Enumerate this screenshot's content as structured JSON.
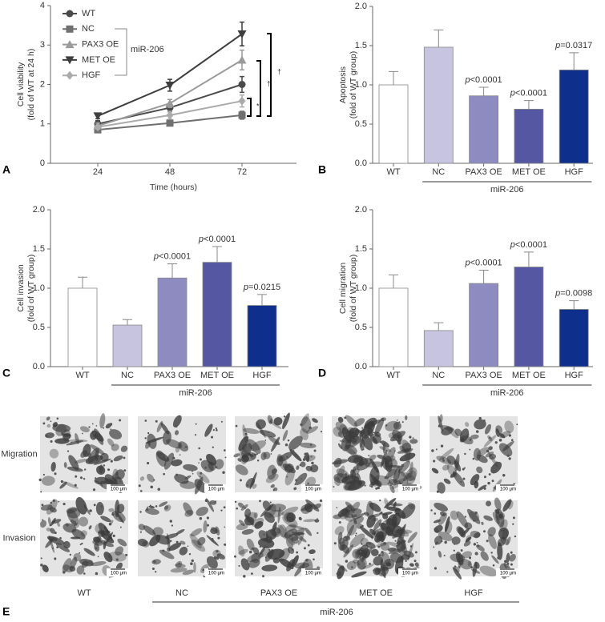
{
  "chart_data": [
    {
      "type": "line",
      "panel_label": "A",
      "xlabel": "Time (hours)",
      "ylabel": [
        "Cell viability",
        "(fold of WT at 24 h)"
      ],
      "categories": [
        "24",
        "48",
        "72"
      ],
      "ylim": [
        0,
        4
      ],
      "yticks": [
        0,
        1,
        2,
        3,
        4
      ],
      "legend_group": "miR-206",
      "series": [
        {
          "name": "WT",
          "color": "#4a4a4a",
          "marker": "circle",
          "values": [
            1.0,
            1.41,
            2.0
          ],
          "errors": [
            0.08,
            0.1,
            0.2
          ]
        },
        {
          "name": "NC",
          "color": "#707070",
          "marker": "square",
          "values": [
            0.85,
            1.02,
            1.22
          ],
          "errors": [
            0.05,
            0.07,
            0.1
          ]
        },
        {
          "name": "PAX3 OE",
          "color": "#9a9a9a",
          "marker": "triangle-up",
          "values": [
            0.95,
            1.52,
            2.62
          ],
          "errors": [
            0.07,
            0.1,
            0.25
          ]
        },
        {
          "name": "MET OE",
          "color": "#3e3e3e",
          "marker": "triangle-down",
          "values": [
            1.2,
            1.98,
            3.28
          ],
          "errors": [
            0.07,
            0.15,
            0.3
          ]
        },
        {
          "name": "HGF",
          "color": "#ababab",
          "marker": "diamond",
          "values": [
            0.92,
            1.22,
            1.58
          ],
          "errors": [
            0.05,
            0.1,
            0.15
          ]
        }
      ],
      "annotations": [
        "*",
        "†",
        "†"
      ]
    },
    {
      "type": "bar",
      "panel_label": "B",
      "ylabel": [
        "Apoptosis",
        "(fold of WT group)"
      ],
      "categories": [
        "WT",
        "NC",
        "PAX3 OE",
        "MET OE",
        "HGF"
      ],
      "colors": [
        "#ffffff",
        "#c6c4df",
        "#8d8bc0",
        "#5557a3",
        "#0e2f8b"
      ],
      "values": [
        1.0,
        1.48,
        0.86,
        0.69,
        1.19
      ],
      "errors": [
        0.17,
        0.22,
        0.11,
        0.11,
        0.22
      ],
      "annotations": [
        null,
        null,
        "p<0.0001",
        "p<0.0001",
        "p=0.0317"
      ],
      "ylim": [
        0,
        2
      ],
      "yticks": [
        {
          "value": 0,
          "label": "0.0"
        },
        {
          "value": 0.5,
          "label": "0.5"
        },
        {
          "value": 1,
          "label": "1.0"
        },
        {
          "value": 1.5,
          "label": "1.5"
        },
        {
          "value": 2,
          "label": "2.0"
        }
      ],
      "group_label": "miR-206"
    },
    {
      "type": "bar",
      "panel_label": "C",
      "ylabel": [
        "Cell invasion",
        "(fold of WT group)"
      ],
      "categories": [
        "WT",
        "NC",
        "PAX3 OE",
        "MET OE",
        "HGF"
      ],
      "colors": [
        "#ffffff",
        "#c6c4df",
        "#8d8bc0",
        "#5557a3",
        "#0e2f8b"
      ],
      "values": [
        1.0,
        0.53,
        1.13,
        1.33,
        0.78
      ],
      "errors": [
        0.14,
        0.07,
        0.18,
        0.2,
        0.14
      ],
      "annotations": [
        null,
        null,
        "p<0.0001",
        "p<0.0001",
        "p=0.0215"
      ],
      "ylim": [
        0,
        2
      ],
      "yticks": [
        {
          "value": 0,
          "label": "0.0"
        },
        {
          "value": 0.5,
          "label": "0.5"
        },
        {
          "value": 1,
          "label": "1.0"
        },
        {
          "value": 1.5,
          "label": "1.5"
        },
        {
          "value": 2,
          "label": "2.0"
        }
      ],
      "group_label": "miR-206"
    },
    {
      "type": "bar",
      "panel_label": "D",
      "ylabel": [
        "Cell migration",
        "(fold of WT group)"
      ],
      "categories": [
        "WT",
        "NC",
        "PAX3 OE",
        "MET OE",
        "HGF"
      ],
      "colors": [
        "#ffffff",
        "#c6c4df",
        "#8d8bc0",
        "#5557a3",
        "#0e2f8b"
      ],
      "values": [
        1.0,
        0.46,
        1.06,
        1.27,
        0.73
      ],
      "errors": [
        0.17,
        0.1,
        0.17,
        0.19,
        0.11
      ],
      "annotations": [
        null,
        null,
        "p<0.0001",
        "p<0.0001",
        "p=0.0098"
      ],
      "ylim": [
        0,
        2
      ],
      "yticks": [
        {
          "value": 0,
          "label": "0.0"
        },
        {
          "value": 0.5,
          "label": "0.5"
        },
        {
          "value": 1,
          "label": "1.0"
        },
        {
          "value": 1.5,
          "label": "1.5"
        },
        {
          "value": 2,
          "label": "2.0"
        }
      ],
      "group_label": "miR-206"
    }
  ],
  "panel_e": {
    "panel_label": "E",
    "rows": [
      "Migration",
      "Invasion"
    ],
    "columns": [
      "WT",
      "NC",
      "PAX3 OE",
      "MET OE",
      "HGF"
    ],
    "group_label": "miR-206",
    "scale_bar": "100 μm"
  }
}
